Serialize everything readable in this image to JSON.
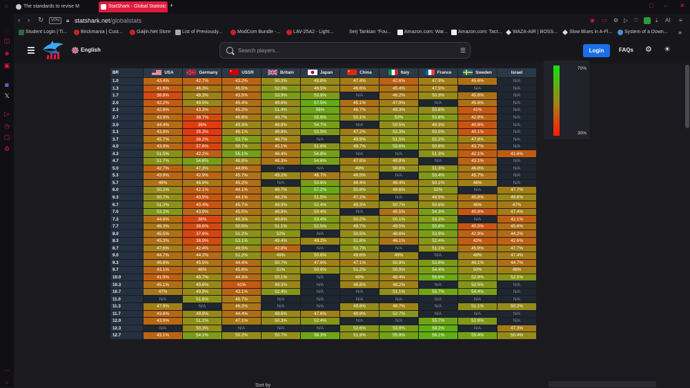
{
  "browser": {
    "tabs": [
      {
        "title": "The standards to revise M",
        "active": false
      },
      {
        "title": "StatShark - Global Statistic",
        "active": true
      }
    ],
    "new_tab": "+",
    "vpn": "VPN",
    "url_domain": "statshark.net",
    "url_path": "/globalstats",
    "ai_label": "AI",
    "bookmarks": [
      "Student Login | Ti...",
      "Brickmania | Cust...",
      "Gaijin.Net Store",
      "List of Previously...",
      "ModCom Bundle -...",
      "LAV-25A2 - Light...",
      "Serj Tankian \"Fou...",
      "Amazon.com: War...",
      "Amazon.com: Tact...",
      "WAZA-AIR | BOSS...",
      "Slow Blues in A-Fl...",
      "System of a Down..."
    ],
    "bookmarks_more": "»"
  },
  "header": {
    "language": "English",
    "search_placeholder": "Search players...",
    "login": "Login",
    "faqs": "FAQs"
  },
  "table": {
    "br_header": "BR",
    "nations": [
      "USA",
      "Germany",
      "USSR",
      "Britain",
      "Japan",
      "China",
      "Italy",
      "France",
      "Sweden",
      "Israel"
    ],
    "na_label": "N/A",
    "rows": [
      {
        "br": "1.0",
        "v": [
          "43.4%",
          "42.7%",
          "43.2%",
          "50.3%",
          "49.8%",
          "47.4%",
          "42.6%",
          "47.9%",
          "45.6%",
          "N/A"
        ]
      },
      {
        "br": "1.3",
        "v": [
          "41.6%",
          "46.3%",
          "45.5%",
          "52.3%",
          "49.5%",
          "46.6%",
          "45.4%",
          "47.5%",
          "N/A",
          "N/A"
        ]
      },
      {
        "br": "1.7",
        "v": [
          "38.8%",
          "48.3%",
          "43.5%",
          "53.9%",
          "53.9%",
          "N/A",
          "46.2%",
          "50.3%",
          "45.6%",
          "N/A"
        ]
      },
      {
        "br": "2.0",
        "v": [
          "42.2%",
          "49.5%",
          "45.4%",
          "49.6%",
          "57.5%",
          "45.1%",
          "47.9%",
          "N/A",
          "45.6%",
          "N/A"
        ]
      },
      {
        "br": "2.3",
        "v": [
          "42.8%",
          "43.3%",
          "45.2%",
          "51.4%",
          "56%",
          "46.7%",
          "49.3%",
          "50.8%",
          "41%",
          "N/A"
        ]
      },
      {
        "br": "2.7",
        "v": [
          "43.9%",
          "38.7%",
          "46.6%",
          "49.7%",
          "55.6%",
          "50.1%",
          "53%",
          "53.8%",
          "42.8%",
          "N/A"
        ]
      },
      {
        "br": "3.0",
        "v": [
          "44.4%",
          "36%",
          "49.3%",
          "48.8%",
          "54.7%",
          "N/A",
          "50.5%",
          "49.3%",
          "40.8%",
          "N/A"
        ]
      },
      {
        "br": "3.3",
        "v": [
          "43.8%",
          "35.3%",
          "48.1%",
          "48.8%",
          "53.5%",
          "47.2%",
          "52.3%",
          "50.5%",
          "40.1%",
          "N/A"
        ]
      },
      {
        "br": "3.7",
        "v": [
          "45.7%",
          "38.2%",
          "53.7%",
          "48.7%",
          "N/A",
          "49.9%",
          "51.5%",
          "52.2%",
          "47.8%",
          "N/A"
        ]
      },
      {
        "br": "4.0",
        "v": [
          "43.9%",
          "37.6%",
          "50.7%",
          "45.1%",
          "51.6%",
          "49.7%",
          "53.6%",
          "50.9%",
          "43.7%",
          "N/A"
        ]
      },
      {
        "br": "4.3",
        "v": [
          "51.5%",
          "42.2%",
          "55.1%",
          "46.4%",
          "54.8%",
          "N/A",
          "N/A",
          "51.3%",
          "42.1%",
          "41.6%"
        ]
      },
      {
        "br": "4.7",
        "v": [
          "51.7%",
          "54.6%",
          "48.8%",
          "46.3%",
          "54.6%",
          "47.6%",
          "49.8%",
          "N/A",
          "43.1%",
          "N/A"
        ]
      },
      {
        "br": "5.0",
        "v": [
          "42.7%",
          "47.3%",
          "44.6%",
          "N/A",
          "N/A",
          "49%",
          "50.8%",
          "51.3%",
          "46.8%",
          "N/A"
        ]
      },
      {
        "br": "5.3",
        "v": [
          "43.9%",
          "42.9%",
          "45.7%",
          "49.2%",
          "46.7%",
          "48.5%",
          "N/A",
          "53.4%",
          "45.7%",
          "N/A"
        ]
      },
      {
        "br": "5.7",
        "v": [
          "46%",
          "46.9%",
          "45.2%",
          "N/A",
          "53.6%",
          "48.4%",
          "48.4%",
          "50.1%",
          "48%",
          "N/A"
        ]
      },
      {
        "br": "6.0",
        "v": [
          "50.2%",
          "42.1%",
          "44.1%",
          "49.7%",
          "57.2%",
          "50.8%",
          "49.6%",
          "52%",
          "N/A",
          "47.7%"
        ]
      },
      {
        "br": "6.3",
        "v": [
          "50.7%",
          "40.5%",
          "44.1%",
          "48.2%",
          "51.5%",
          "47.2%",
          "N/A",
          "49.5%",
          "45.8%",
          "49.6%"
        ]
      },
      {
        "br": "6.7",
        "v": [
          "51.3%",
          "40.4%",
          "45.7%",
          "49.9%",
          "52.4%",
          "49.3%",
          "50.7%",
          "50.8%",
          "46%",
          "47%"
        ]
      },
      {
        "br": "7.0",
        "v": [
          "53.2%",
          "43.9%",
          "45.5%",
          "48.8%",
          "50.4%",
          "N/A",
          "45.5%",
          "54.3%",
          "40.8%",
          "47.4%"
        ]
      },
      {
        "br": "7.3",
        "v": [
          "44.6%",
          "38%",
          "48.3%",
          "49.6%",
          "53.4%",
          "50.2%",
          "50.1%",
          "53.2%",
          "N/A",
          "42.1%"
        ]
      },
      {
        "br": "7.7",
        "v": [
          "46.3%",
          "38.6%",
          "50.5%",
          "51.1%",
          "52.5%",
          "49.7%",
          "49.5%",
          "55.8%",
          "40.5%",
          "45.6%"
        ]
      },
      {
        "br": "8.0",
        "v": [
          "45.5%",
          "37.6%",
          "51.2%",
          "52%",
          "N/A",
          "50.5%",
          "48.6%",
          "53.9%",
          "42.9%",
          "44.2%"
        ]
      },
      {
        "br": "8.3",
        "v": [
          "45.3%",
          "38.9%",
          "53.1%",
          "49.4%",
          "49.2%",
          "51.8%",
          "46.1%",
          "52.4%",
          "42%",
          "42.6%"
        ]
      },
      {
        "br": "8.7",
        "v": [
          "47.6%",
          "42.4%",
          "49.5%",
          "42.8%",
          "N/A",
          "51.7%",
          "N/A",
          "51.1%",
          "45.9%",
          "47.7%"
        ]
      },
      {
        "br": "9.0",
        "v": [
          "44.7%",
          "44.2%",
          "51.2%",
          "49%",
          "50.6%",
          "49.6%",
          "49%",
          "N/A",
          "48%",
          "47.4%"
        ]
      },
      {
        "br": "9.3",
        "v": [
          "46.6%",
          "45.5%",
          "44.4%",
          "50.7%",
          "47.6%",
          "47.1%",
          "50.9%",
          "53.6%",
          "49.1%",
          "44.7%"
        ]
      },
      {
        "br": "9.7",
        "v": [
          "43.1%",
          "46%",
          "45.6%",
          "51%",
          "50.9%",
          "51.2%",
          "50.9%",
          "54.4%",
          "50%",
          "48%"
        ]
      },
      {
        "br": "10.0",
        "v": [
          "41.9%",
          "49.7%",
          "44.3%",
          "50.1%",
          "N/A",
          "49%",
          "48.4%",
          "56.6%",
          "52.8%",
          "52.5%"
        ]
      },
      {
        "br": "10.3",
        "v": [
          "45.1%",
          "49.6%",
          "41%",
          "49.3%",
          "N/A",
          "48.8%",
          "48.2%",
          "N/A",
          "52.5%",
          "N/A"
        ]
      },
      {
        "br": "10.7",
        "v": [
          "47%",
          "49.9%",
          "43.1%",
          "52.4%",
          "N/A",
          "N/A",
          "51.1%",
          "55.7%",
          "54.4%",
          "N/A"
        ]
      },
      {
        "br": "11.0",
        "v": [
          "N/A",
          "51.6%",
          "46.7%",
          "N/A",
          "N/A",
          "N/A",
          "N/A",
          "N/A",
          "N/A",
          "N/A"
        ]
      },
      {
        "br": "11.3",
        "v": [
          "47.9%",
          "N/A",
          "46.2%",
          "N/A",
          "N/A",
          "49.8%",
          "48.7%",
          "N/A",
          "51.1%",
          "50.2%"
        ]
      },
      {
        "br": "11.7",
        "v": [
          "43.8%",
          "49.9%",
          "44.4%",
          "49.6%",
          "47.6%",
          "49.8%",
          "52.7%",
          "N/A",
          "N/A",
          "N/A"
        ]
      },
      {
        "br": "12.0",
        "v": [
          "43.9%",
          "51.1%",
          "47.1%",
          "50.3%",
          "52.4%",
          "N/A",
          "N/A",
          "55.7%",
          "52.9%",
          "N/A"
        ]
      },
      {
        "br": "12.3",
        "v": [
          "N/A",
          "50.3%",
          "N/A",
          "N/A",
          "N/A",
          "52.6%",
          "53.9%",
          "58.2%",
          "N/A",
          "47.3%"
        ]
      },
      {
        "br": "12.7",
        "v": [
          "43.1%",
          "54.1%",
          "50.2%",
          "50.7%",
          "56.3%",
          "51.9%",
          "55.9%",
          "58.1%",
          "55.4%",
          "50.4%"
        ]
      }
    ]
  },
  "legend": {
    "max": "70%",
    "min": "30%"
  },
  "footer": {
    "sort_label": "Sort by"
  },
  "colors": {
    "browser_accent": "#e01a3c",
    "login_button": "#1b6fe8",
    "scale_high": "#11e011",
    "scale_low": "#ff1a0a"
  }
}
